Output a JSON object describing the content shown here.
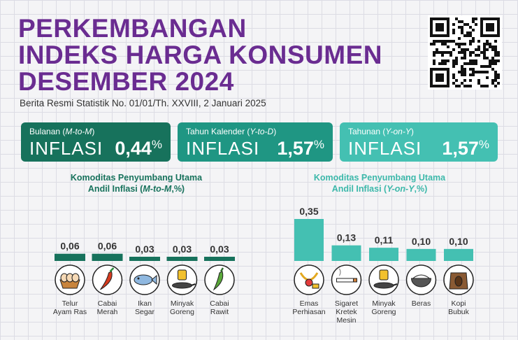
{
  "title": {
    "line1": "PERKEMBANGAN",
    "line2": "INDEKS HARGA KONSUMEN",
    "line3": "DESEMBER 2024"
  },
  "subtitle": "Berita Resmi Statistik No. 01/01/Th. XXVIII, 2 Januari 2025",
  "cards": [
    {
      "label_prefix": "Bulanan (",
      "label_italic": "M-to-M",
      "label_suffix": ")",
      "word": "INFLASI",
      "value": "0,44",
      "unit": "%",
      "color": "#17725c"
    },
    {
      "label_prefix": "Tahun Kalender (",
      "label_italic": "Y-to-D",
      "label_suffix": ")",
      "word": "INFLASI",
      "value": "1,57",
      "unit": "%",
      "color": "#1f9683"
    },
    {
      "label_prefix": "Tahunan (",
      "label_italic": "Y-on-Y",
      "label_suffix": ")",
      "word": "INFLASI",
      "value": "1,57",
      "unit": "%",
      "color": "#44c0b2"
    }
  ],
  "section_mtm": {
    "line1": "Komoditas Penyumbang Utama",
    "line2_prefix": "Andil Inflasi (",
    "line2_italic": "M-to-M",
    "line2_suffix": ",%)"
  },
  "section_yoy": {
    "line1": "Komoditas Penyumbang Utama",
    "line2_prefix": "Andil Inflasi (",
    "line2_italic": "Y-on-Y",
    "line2_suffix": ",%)"
  },
  "chart_data": [
    {
      "type": "bar",
      "categories": [
        [
          "Telur",
          "Ayam Ras"
        ],
        [
          "Cabai",
          "Merah"
        ],
        [
          "Ikan",
          "Segar"
        ],
        [
          "Minyak",
          "Goreng"
        ],
        [
          "Cabai",
          "Rawit"
        ]
      ],
      "values": [
        0.06,
        0.06,
        0.03,
        0.03,
        0.03
      ],
      "value_labels": [
        "0,06",
        "0,06",
        "0,03",
        "0,03",
        "0,03"
      ],
      "icons": [
        "egg-basket-icon",
        "chili-icon",
        "fish-icon",
        "oil-pan-icon",
        "green-chili-icon"
      ],
      "color": "#17725c",
      "ylim": [
        0,
        0.35
      ]
    },
    {
      "type": "bar",
      "categories": [
        [
          "Emas",
          "Perhiasan"
        ],
        [
          "Sigaret",
          "Kretek",
          "Mesin"
        ],
        [
          "Minyak",
          "Goreng"
        ],
        [
          "Beras"
        ],
        [
          "Kopi",
          "Bubuk"
        ]
      ],
      "values": [
        0.35,
        0.13,
        0.11,
        0.1,
        0.1
      ],
      "value_labels": [
        "0,35",
        "0,13",
        "0,11",
        "0,10",
        "0,10"
      ],
      "icons": [
        "gold-jewelry-icon",
        "cigarette-icon",
        "oil-pan-icon",
        "rice-bowl-icon",
        "coffee-sack-icon"
      ],
      "color": "#44c0b2",
      "ylim": [
        0,
        0.35
      ]
    }
  ]
}
